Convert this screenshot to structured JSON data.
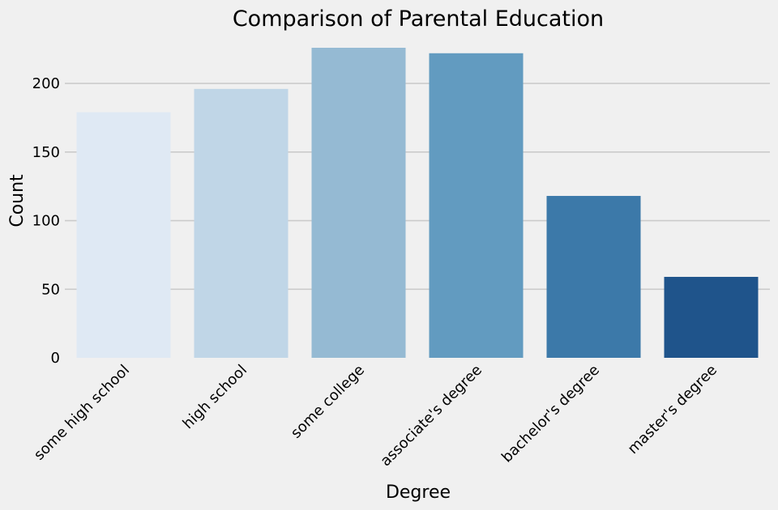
{
  "chart_data": {
    "type": "bar",
    "title": "Comparison of Parental Education",
    "xlabel": "Degree",
    "ylabel": "Count",
    "categories": [
      "some high school",
      "high school",
      "some college",
      "associate's degree",
      "bachelor's degree",
      "master's degree"
    ],
    "values": [
      179,
      196,
      226,
      222,
      118,
      59
    ],
    "colors": [
      "#dfe9f4",
      "#c0d6e7",
      "#95bad3",
      "#629bc0",
      "#3c79a9",
      "#1f548b"
    ],
    "yticks": [
      0,
      50,
      100,
      150,
      200
    ],
    "ylim": [
      0,
      226
    ],
    "grid": "horizontal",
    "legend": "none",
    "background": "#f0f0f0"
  }
}
